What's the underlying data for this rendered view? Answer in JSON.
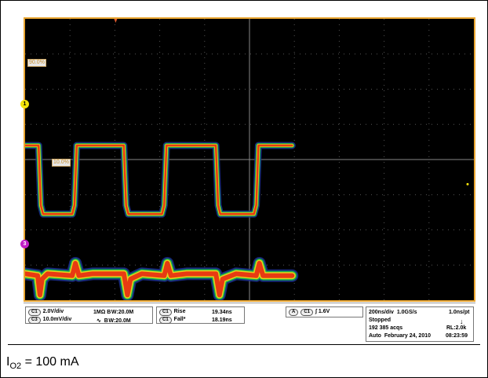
{
  "chart_data": {
    "type": "line",
    "title": "",
    "xlabel": "",
    "ylabel": "",
    "x_divisions": 10,
    "y_divisions": 8,
    "background": "#000000",
    "grid": true,
    "series": [
      {
        "name": "C1",
        "color": "#e83a12",
        "points": [
          [
            0,
            0.4
          ],
          [
            0.3,
            0.4
          ],
          [
            0.35,
            -1.3
          ],
          [
            0.4,
            -1.55
          ],
          [
            1.05,
            -1.55
          ],
          [
            1.1,
            -1.3
          ],
          [
            1.15,
            0.4
          ],
          [
            2.2,
            0.4
          ],
          [
            2.25,
            -1.3
          ],
          [
            2.3,
            -1.55
          ],
          [
            3.05,
            -1.55
          ],
          [
            3.1,
            -1.3
          ],
          [
            3.15,
            0.4
          ],
          [
            4.25,
            0.4
          ],
          [
            4.3,
            -1.3
          ],
          [
            4.35,
            -1.55
          ],
          [
            5.1,
            -1.55
          ],
          [
            5.15,
            -1.3
          ],
          [
            5.2,
            0.4
          ],
          [
            5.95,
            0.4
          ]
        ]
      },
      {
        "name": "C3",
        "color": "#e83a12",
        "points": [
          [
            0,
            -3.25
          ],
          [
            0.28,
            -3.3
          ],
          [
            0.33,
            -3.85
          ],
          [
            0.38,
            -3.4
          ],
          [
            0.5,
            -3.25
          ],
          [
            1.05,
            -3.3
          ],
          [
            1.12,
            -2.95
          ],
          [
            1.2,
            -3.3
          ],
          [
            1.5,
            -3.25
          ],
          [
            2.2,
            -3.25
          ],
          [
            2.28,
            -3.85
          ],
          [
            2.35,
            -3.4
          ],
          [
            2.6,
            -3.25
          ],
          [
            3.1,
            -3.3
          ],
          [
            3.17,
            -2.95
          ],
          [
            3.25,
            -3.3
          ],
          [
            3.6,
            -3.25
          ],
          [
            4.25,
            -3.25
          ],
          [
            4.33,
            -3.85
          ],
          [
            4.4,
            -3.4
          ],
          [
            4.7,
            -3.25
          ],
          [
            5.15,
            -3.3
          ],
          [
            5.22,
            -2.95
          ],
          [
            5.3,
            -3.3
          ],
          [
            5.95,
            -3.3
          ]
        ]
      }
    ],
    "ref_levels": {
      "upper": "90.0%",
      "lower": "10.0%"
    },
    "channel_markers": [
      "1",
      "3"
    ]
  },
  "info": {
    "ch1": {
      "tag": "C1",
      "scale": "2.0V/div",
      "imp": "1MΩ",
      "bw": "B W:20.0M"
    },
    "ch3": {
      "tag": "C3",
      "scale": "10.0mV/div",
      "imp": "∿",
      "bw": "B W:20.0M"
    },
    "meas1": {
      "tag": "C1",
      "name": "Rise",
      "value": "19.34ns"
    },
    "meas2": {
      "tag": "C1",
      "name": "Fall*",
      "value": "18.19ns"
    },
    "trigger": {
      "mode": "A",
      "src": "C1",
      "slope": "∫",
      "level": "1.6V"
    },
    "acq": {
      "timebase": "200ns/div",
      "rate": "1.0GS/s",
      "res": "1.0ns/pt",
      "state": "Stopped",
      "acqs": "192 385 acqs",
      "rl": "RL:2.0k",
      "mode": "Auto",
      "date": "February 24, 2010",
      "time": "08:23:59"
    }
  },
  "caption": {
    "main": "I",
    "sub": "O2",
    "rest": " = 100 mA"
  }
}
